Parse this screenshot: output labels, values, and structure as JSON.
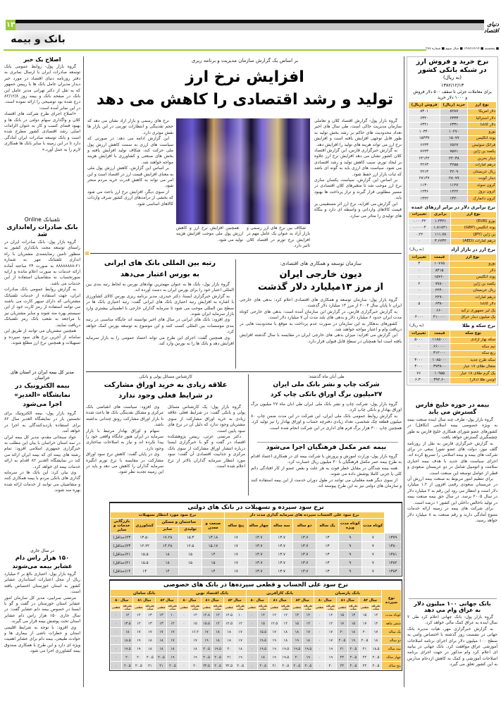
{
  "masthead": {
    "page_number": "۱۳",
    "logo": "دنیای اقتصاد",
    "section": "بانک و بیمه",
    "dateline": "■ پنجشنبه ■ ۱۳۸۲/۱۲/۱۴ ■ سال سوم ■ شماره ۳۸۷"
  },
  "colors": {
    "accent_green": "#9acd32",
    "table_yellow": "#f7c95a",
    "gray_bar": "#c8c8c8"
  },
  "left": {
    "a1": {
      "title": "اصلاح یک خبر",
      "body": [
        "گروه بازار پول- روابط عمومی بانک توسعه صادرات ایران با ارسال نمابری به دفتر روزنامه دنیای اقتصاد در مورد خبر دیدار مدیران عامل بانک ها با رییس جمهور که به نقل از دکتر تهرانی مدیر عامل این بانک در صفحه بانک و بیمه روز ۸۲/۱۲/۸ درج شده بود توضیحی را ارائه نموده است. در این نمابر آمده است:",
        "«اصلاح اجرای طرح شرکت های اقتصاد کلان و واگذاری سهام دولتی در بانک ها و بهبود فضای کسب و کار به عنوان الزامات اصلی رشد اقتصادی کشور مطرح شده است و بانک توسعه صادرات ایران آمادگی دارد تا در این زمینه با سایر بانک ها همکاری لازم را به عمل آورد.»"
      ]
    },
    "a2": {
      "kicker": "تلفنبانک Online",
      "title": "بانک صادرات راه‌اندازی شد",
      "body": [
        "گروه بازار پول- بانک صادرات ایران در راستای توسعه مجت بانکداری کشور به منظور تامین رضایتمندی مشتریان با راه اندازی تلفنبانک مهر به شماره ۲۱-۸۸۸۸۸۸۸۸ به صورت ۲۴ ساعته آماده ارائه خدمات به صورت اعلام مانده و ارایه صورتحساب به متقاضیان استفاده از این خدمات می باشد.",
        "به گزارش روابط عمومی بانک صادرات ایران، جهت استفاده از خدمات تلفنبانک مشتریانی که دارای سپهر کارت می باشند می توانند استفاده از رمز کارت خود از این سیستم بهره مند شوند و سایر مشتریان نیز با مراجعه به شعب بانک رمز تلفنبانک دریافت نمایند.",
        "همچنین مشتریان می توانند از طریق این سامانه از آخرین نرخ های سود سپرده و تسهیلات و همچنین نرخ ارز مطلع شوند."
      ]
    },
    "a3": {
      "kicker": "مدیر کل بیمه ایران در استان های خراسان",
      "title": "بیمه الکترونیک در نمایشگاه «الغدیر» اجرا می‌شود",
      "body": [
        "گروه بازار پول- بیمه الکترونیک برای نخستین بار در نمایشگاه الغدیر سال ۸۲ برای استفاده بازدیدکنندگان به اجرا در خواهد آمد.",
        "جواد سبحانی مقدم، مدیر کل بیمه ایران در سه استان خراسان با بیان این مطلب به خبرگزاری جمهوری اسلامی افزود: تمام رشته های بیمه ای که بیمه ایران ارائه می کند در نمایشگاه الغدیر ۸۲ اقدام به ارائه خدمات بیمه ای خواهد کرد.",
        "وی بیان کرد: این بانک ها در سرمایه گذاری های بانکی مردم با بیمه همکاری کنند و متقاضیان می توانند از خدمات ارائه شده بهره مند شوند."
      ]
    },
    "a4": {
      "kicker": "در سال جاری",
      "title": "۱۵۰ هزار راس دام عشایر بیمه می‌شوند",
      "body": [
        "گروه بازار پول- اعتباری بالغ بر ۲ میلیارد ریال از محل اعتبارات استانداری عشایر کشور به استان خوزستان اختصاص یافته است.",
        "مرتضی سرابیی، مدیر کل سازمان امور عشایر استان خوزستان در گفت و گو با ایسنا در خصوص بیمه دام عشایر گفت: در سال جاری ۱۵۰ هزار راس دام عشایر استان تحت پوشش بیمه قرار می گیرند.",
        "وی افزود: با توجه به شرایط اقلیمی استان و خطرات ناشی از بیماری ها و حوادث طبیعی، بیمه دام برای عشایر اهمیت ویژه ای دارد و این طرح با همکاری صندوق بیمه کشاورزی اجرا می شود."
      ]
    }
  },
  "main": {
    "lead": {
      "kicker": "بر اساس یک گزارش سازمان مدیریت و برنامه ریزی",
      "headline_1": "افزایش نرخ ارز",
      "headline_2": "تولید و رشد اقتصادی را کاهش می دهد",
      "body_right": [
        "گروه بازار پول- گزارش اقتصاد کلان و تعاملی سازمان مدیریت حاکی است، طی سال های اخیر تعداد محدودیت های حاکم بر رشد بخش تولید به طور قابل توجهی افزایش یافته است و افزایش نرخ ارز می تواند هزینه های تولید را افزایش دهد.",
        "به گزارش خبرگزاری فارس، این گزارش اقتصاد کلان کشور نشان می دهد افزایش نرخ ارز علاوه بر ایجاد تورم، سبب کاهش تولید و رشد اقتصادی می شود. سیاست های ارزی باید به گونه ای باشد که ثبات بازار ارز حفظ شود.",
        "بر اساس این گزارش، سیاست یکسان سازی نرخ ارز موجب شد تا متغیرهای کلان اقتصادی در مسیر مطلوبی قرار گیرند و تراز پرداخت ها بهبود یابد.",
        "این گزارش می افزاید، نرخ ارز اثر مستقیمی بر قیمت کالاهای وارداتی و واسطه ای دارد و بنگاه های تولیدی را متاثر می سازد."
      ],
      "body_left": [
        "نرخ های رسمی و بازار آزاد نشان می دهد که حجم نقدینگی و انتظارات تورمی در این بازار ها نقش موثری دارد.",
        "این گزارش ادامه می دهد: در صورتی که سیاست های ارزی به سمت کاهش ارزش پول ملی حرکت کند، شکاف تولید افزایش یافته و بخش های صنعتی و کشاورزی با افزایش هزینه مواجه خواهند شد.",
        "بر اساس این گزارش، کاهش ارزش پول ملی به معنای افزایش قیمت ارز در اقتصاد است و این امر می تواند به کاهش قدرت خرید مردم منجر شود.",
        "از سوی دیگر، افزایش نرخ ارز باعث می شود که بخشی از درآمدهای ارزی کشور صرف واردات کالاهای اساسی شود."
      ],
      "caption_1": "شکاف بین نرخ های ارز رسمی و بازار آزاد به عنوان یک عامل مهم در افزایش نرخ تورم در اقتصاد کلان تاثیر دارد.",
      "caption_2": "همچنین افزایش نرخ ارز و کاهش ارزش پول ملی موجب افزایش هزینه تولید می شود."
    },
    "rank": {
      "headline_1": "رتبه بین المللی بانک های ایرانی",
      "headline_2": "به بورس اعتبار می‌دهد",
      "body": [
        "گروه بازار پول- بانک ها به عنوان مهمترین نهادهای بورس به لحاظ رتبه بندی بین المللی اعتبار خود را برای بورس ایران به دست آورده اند.",
        "به گزارش خبرگزاری ایسنا، دکتر حیدری، مدیر برنامه ریزی بورس کالای کشاورزی با اشاره به افزایش رتبه اعتباری بانک های ایرانی گفت: رتبه اعتباری بانک ها در سطح بین المللی موجب می شود تا سرمایه گذاران خارجی با اطمینان بیشتری وارد بازار سرمایه ایران شوند.",
        "وی افزود: بانک های ایرانی در سال های اخیر توانسته اند جایگاه مناسبی در رتبه بندی موسسات بین المللی کسب کنند و این موضوع به توسعه بورس کمک خواهد کرد.",
        "وی همچنین گفت: اجرای این طرح می تواند اعتماد عمومی را به بازار سرمایه افزایش دهد و بانک ها را به بورس وارد کند."
      ]
    },
    "debt": {
      "kicker": "سازمان توسعه و همکاری های اقتصادی:",
      "headline_1": "دیون خارجی ایران",
      "headline_2": "از مرز ۱۳میلیارد دلار گذشت",
      "body": [
        "گروه بازار پول- سازمان توسعه و همکاری های اقتصادی اعلام کرد: بدهی های خارجی ایران تا پایان سال ۲۰۰۳ از مرز ۱۳ میلیارد دلار گذشت.",
        "به گزارش خبرگزاری فارس، در گزارش این سازمان آمده است: بدهی های خارجی کوتاه مدت ایران حدود ۶ میلیارد دلار و بدهی های بلند مدت آن ۷ میلیارد دلار است.",
        "کشورهای بدهکار به این سازمان در صورت عدم پرداخت به موقع با محدودیت هایی در دریافت وام و اعتبار مواجه خواهند شد.",
        "این گزارش می افزاید: میزان بدهی های خارجی ایران در مقایسه با سال گذشته افزایش یافته است اما همچنان در سطح قابل قبولی قرار دارد."
      ]
    },
    "bonds": {
      "kicker": "کارشناس مسائل پولی و بانکی",
      "headline_1": "علاقه زیادی به خرید اوراق مشارکت",
      "headline_2": "در شرایط فعلی وجود ندارد",
      "body": [
        "گروه بازار پول- یک کارشناس مسائل پولی و بانکی گفت: در شرایط فعلی علاقه زیادی به خرید اوراق مشارکت از سوی مشتریان وجود ندارد که دلیل آن در نرخ های سود پایین است.",
        "دکتر مرتضی عزتی، رییس پژوهشکده اقتصاد در گفت و گو با خبرگزاری ایسنا درباره انتشار اوراق مشارکت از سوی بانک مرکزی و جذابیت اقتصادی آن گفت: سود مورد انتظار سرمایه گذاران بالاتر از نرخ اعلام شده است.",
        "وی افزود: سیاست های انقباضی بانک مرکزی و مشکل نقدینگی بانک ها باعث شده تا بازار اوراق مشارکت رونق چندانی نداشته باشد.",
        "سهام و اوراق بهادار مرتبط با بازار سرمایه در ایران هنوز جایگاه واقعی خود را پیدا نکرده اند و نیاز به اصلاحات ساختاری وجود دارد.",
        "وی در پایان گفت: کاهش نرخ سود اوراق مشارکت در مقایسه با نرخ تورم انگیزه سرمایه گذاران را کاهش می دهد و باید در این زمینه تجدید نظر شود."
      ]
    },
    "print": {
      "kicker": "طی آبان ماه گذشته:",
      "headline_1": "شرکت چاپ و نشر بانک ملی ایران",
      "headline_2": "۲۷میلیون برگ اوراق بانکی چاپ کرد",
      "body": [
        "گروه بازار پول- شرکت چاپ و نشر بانک ملی ایران طی آبان ماه ۲۷ میلیون برگ اوراق بهادار و بانکی چاپ کرد.",
        "به گزارش روابط عمومی بانک ملی ایران، این شرکت در این مدت ضمن چاپ ۸۰ میلیون قطعه چک شخصی، تعداد زیادی دفترچه حساب و اوراق بهادار را نیز تولید کرد. همچنین چاپ ۳۰۰ هزار برگ فرم های اداری در این شرکت انجام شده است."
      ]
    },
    "insurance": {
      "headline": "بیمه عمر مکمل فرهنگیان اجرا می‌شود",
      "body": [
        "گروه بازار پول- وزارت آموزش و پرورش با شرکت بیمه ای در همکاری اعتماد اقدام به طرح بیمه عمر مکمل فرهنگیان با ۳۰ میلیون ریال خسارت کرد.",
        "همه بیمه شدگان در مقابل خطر فوت به هر علت و نقص عضو از کار افتادگی دائم کلی یا جزیی کاملا پوشش داده می شوند.",
        "از سوی دیگر همه معلمان می توانند در طول دوران خدمت از این بیمه استفاده کنند و سازمان های دولتی نیز به این طرح پیوسته اند."
      ]
    }
  },
  "table_state": {
    "title": "نرخ سود سپرده و تسهیلات در بانک های دولتی",
    "group_deposit": "نرخ سود علی الحساب سپرده های سرمایه گذاری مدت دار",
    "group_loan": "نرخ سود مورد انتظار تسهیلات",
    "deposit_cols": [
      "کوتاه مدت",
      "کوتاه مدت ویژه",
      "یک ساله",
      "دو ساله",
      "سه ساله",
      "چهار ساله",
      "پنج ساله"
    ],
    "loan_group_housing": "ساختمان و مسکن",
    "loan_cols": [
      "صنعت و معدن",
      "تولیدی",
      "سایر",
      "کشاورزی",
      "بازرگانی خدمات و سایر"
    ],
    "rows": [
      {
        "year": "۱۳۷۹",
        "values": [
          "۷",
          "۹",
          "۱۳",
          "۱۳.۷",
          "۱۳.۷",
          "۱۳.۷",
          "۱۷",
          "۱۳.۱۸",
          "۱۵.۳",
          "۱۷.۲۸",
          "۱۳.۵۰",
          "۲۳(حداقل)"
        ]
      },
      {
        "year": "۱۳۸۰",
        "values": [
          "۷",
          "۹",
          "۱۳",
          "۱۳.۷",
          "۱۳.۷",
          "۱۳.۷",
          "۱۷",
          "۱۵.۱۷",
          "۱۲.۵",
          "۱۴.۲۸",
          "۱۲.۲۲",
          "۲۳(حداقل)"
        ]
      },
      {
        "year": "۱۳۸۱",
        "values": [
          "۷",
          "۹",
          "۱۳",
          "۱۳.۷",
          "۱۳.۷",
          "۱۳.۷",
          "۱۷",
          "۱۴",
          "۱۵",
          "۱۸",
          "۱۵.۵",
          "۲۱(حداقل)"
        ]
      },
      {
        "year": "۱۳۸۲",
        "values": [
          "۷",
          "۹",
          "۱۳",
          "۱۳.۷",
          "۱۳.۷",
          "۱۳.۷",
          "۱۷",
          "۱۵",
          "۱۵",
          "۱۸",
          "۱۵.۵",
          "۲۱(حداقل)"
        ]
      },
      {
        "year": "۱۳۸۳",
        "values": [
          "۷",
          "۹",
          "۱۳",
          "۱۳.۷",
          "۱۳.۷",
          "۱۳.۷",
          "۱۷",
          "۱۴",
          "",
          "۱۴",
          "۱۴",
          "۱۴(حداقل)"
        ]
      }
    ]
  },
  "table_private": {
    "title": "نرخ سود علی الحساب و قطعی سپرده‌ها در بانک های خصوصی",
    "label_header": "نوع سپرده",
    "banks": [
      "بانک پارسیان",
      "بانک کارآفرین",
      "بانک اقتصاد نوین",
      "بانک سامان"
    ],
    "years": [
      "سال ۸۲",
      "سال ۸۱",
      "سال ۸۰"
    ],
    "sub": [
      "علی‌الحساب",
      "قطعی"
    ],
    "rows": [
      {
        "label": "کوتاه مدت",
        "values": [
          "۱۲",
          "۱۵",
          "۱۳",
          "۱۵",
          "۱۲",
          "۰",
          "۱۲",
          "۱۳",
          "۱۲",
          "۱۲",
          "۱۲",
          "۰",
          "۱۰",
          "۱۲.۵",
          "۱۲",
          "۱۲.۸",
          "۱۲",
          "۰",
          "۱۰",
          "۱۳",
          "۱۳",
          "۱۲",
          "۱۲",
          "۰"
        ]
      },
      {
        "label": "شش ماهه",
        "values": [
          "۱۲",
          "۱۷",
          "۱۵",
          "۱۷",
          "۱۲",
          "۰",
          "۱۲",
          "۱۵",
          "۱۲",
          "۱۲.۵",
          "۱۵",
          "۰",
          "۱۲",
          "۱۲.۵",
          "۱۲",
          "۱۵.۵",
          "۱۵",
          "۰",
          "۱۲",
          "۱۳",
          "۱۳",
          "۱۲",
          "۱۳.۵",
          "۰"
        ]
      },
      {
        "label": "یک ساله",
        "values": [
          "۱۷",
          "۲۰",
          "۱۸",
          "۲۰",
          "۱۷",
          "۰",
          "۱۷",
          "۱۸",
          "۱۸",
          "۱۷",
          "۱۵.۵",
          "۰",
          "۱۷",
          "۱۸",
          "۱۸",
          "۱۷",
          "۱۶.۲",
          "۰",
          "۱۷",
          "۱۷",
          "۱۷",
          "۱۷",
          "۱۸",
          "۰"
        ]
      },
      {
        "label": "دو ساله",
        "values": [
          "۱۸",
          "۲۰.۵",
          "۱۹",
          "۲۰.۵",
          "۱۷",
          "۰",
          "۱۸",
          "۱۹",
          "۱۸",
          "۱۹",
          "۱۹.۵",
          "۰",
          "۱۷",
          "۱۸",
          "۱۸",
          "۱۹",
          "۱۷",
          "۰",
          "۱۷",
          "۱۸",
          "۱۸",
          "۱۹",
          "۱۸.۵",
          "۰"
        ]
      },
      {
        "label": "سه ساله",
        "values": [
          "۱۸.۵",
          "۲۱",
          "۲۰.۵",
          "۲۱",
          "۱۹",
          "۰",
          "۱۹.۵",
          "۱۹.۵",
          "۱۹.۵",
          "۱۹",
          "۱۹.۵",
          "۰",
          "۱۸",
          "۲۰",
          "۱۹.۵",
          "۲۰.۵",
          "۱۸",
          "۰",
          "۱۸",
          "۱۸",
          "۱۸",
          "۱۹",
          "۱۹.۵",
          "۰"
        ]
      },
      {
        "label": "چهار ساله",
        "values": [
          "۲۰.۵",
          "۲۲",
          "۲۰.۵",
          "۲۲",
          "۱۹",
          "۰",
          "۱۹",
          "۲۰",
          "۱۹.۵",
          "۱۹",
          "۱۸",
          "۰",
          "۱۹",
          "۲۱",
          "۲۰.۵",
          "۲۰.۵",
          "۱۹",
          "۰",
          "۱۹",
          "۲۰.۵",
          "۲۰.۵",
          "۲۰",
          "۲۰",
          "۰"
        ]
      },
      {
        "label": "پنج ساله",
        "values": [
          "۲۰.۵",
          "۲۲",
          "۲۰.۵",
          "۲۲",
          "۲۰",
          "۰",
          "۲۰.۵",
          "۲۰.۵",
          "۲۰.۵",
          "۲۱",
          "۲۰.۵",
          "۰",
          "۲۰.۵",
          "۲۲.۵",
          "۲۰.۵",
          "۲۲.۵",
          "۲۰",
          "۰",
          "۲۰.۵",
          "۲۱",
          "۲۱",
          "۲۰.۵",
          "۲۰.۵",
          "۰"
        ]
      }
    ]
  },
  "sidebar": {
    "fx": {
      "title_1": "نرخ خرید و فروش ارز",
      "title_2": "در شبکه بانکی کشور",
      "unit": "(به ریال)",
      "date": "۱۳۸۲/۱۲/۱۳",
      "note": "برای معاملات جزئی تا سقف ۵۰۰ دلار فروش و ۱۰۰۰ دلار خرید",
      "headers": [
        "نوع ارز",
        "خرید (ریال)",
        "فروش (ریال)"
      ],
      "rows": [
        [
          "دلار آمریکا",
          "۸۲۸۷",
          "۸۳۰۱"
        ],
        [
          "دلار استرالیا",
          "۶۳۳۳",
          "۶۳۴۰"
        ],
        [
          "دلار کانادا",
          "۶۳۳۱",
          "۶۳۴۱"
        ],
        [
          "یورو",
          "۱۰۲۷۰",
          "۱۰۳۴۰"
        ],
        [
          "پوند انگلیس",
          "۱۵۰۷۷",
          "۱۵۴۳۷"
        ],
        [
          "فرانک سوئیس",
          "۶۵۶۷",
          "۶۶۴۳"
        ],
        [
          "یکصد ین ژاپن",
          "۷۵۷۱",
          "۷۶۴۳"
        ],
        [
          "دینار بحرین",
          "۲۲۰۳۸",
          "۲۲۱۴۲"
        ],
        [
          "درهم امارات",
          "۲۲۵۵",
          "۲۲۶۳"
        ],
        [
          "ریال عربستان",
          "۲۲۰۹",
          "۲۲۱۳"
        ],
        [
          "دینار کویت",
          "۲۸۰۷۷",
          "۲۸۱۴۷"
        ],
        [
          "کرون سوئد",
          "۱۱۲۷",
          "۱۱۳۰"
        ],
        [
          "کرون نروژ",
          "۱۲۲۲",
          "۱۲۳۶"
        ],
        [
          "کرون دانمارک",
          "۱۳۲۰",
          "۱۳۴۲"
        ]
      ]
    },
    "parity": {
      "title": "نرخ برابری دلار در برابر ارزهای عمده",
      "headers": [
        "نوع ارز",
        "برابری",
        "تغییرات"
      ],
      "rows": [
        [
          "یورو (EUR)",
          "۱.۲۳۲۱",
          "۰.۰۰۰۴۲"
        ],
        [
          "پوند انگلیس (GBP)",
          "۱.۸۱۸۴۱",
          "۰.۰۰۰۰۴"
        ],
        [
          "ین ژاپن (JPY)",
          "۱۱۱.۷۸",
          "۰.۲۲"
        ],
        [
          "درهم امارات (AED)",
          "۳.۶۷۳۲",
          "۰"
        ]
      ]
    },
    "free": {
      "title": "نرخ ارز در بازار آزاد",
      "unit": "(به ریال)",
      "headers": [
        "نوع ارز",
        "قیمت",
        "تغییرات"
      ],
      "rows": [
        [
          "یورو",
          "۱۰۷۶۵",
          "۳"
        ],
        [
          "دلار",
          "۸۴۱۵",
          "۰"
        ],
        [
          "پوند انگلیس",
          "۱۵۷۶۰",
          "۰"
        ],
        [
          "یکصد ین ژاپن",
          "۷۷۸۰",
          "۲"
        ],
        [
          "ریال عربستان",
          "۲۲۴۰",
          "۰"
        ],
        [
          "درهم امارات",
          "۲۲۹۰",
          "۰"
        ],
        [
          "دلار کانادا",
          "۶۳۸۰",
          "۵"
        ],
        [
          "یک لیر جمهوری ترکیه",
          "۶۶۰",
          "۰"
        ],
        [
          "یک میلیون دینار عراق",
          "۴۱۰۰۰۰",
          "۴۰۰۰"
        ]
      ]
    },
    "gold": {
      "title": "نرخ سکه و طلا",
      "unit": "(به ریال)",
      "headers": [
        "نوع سکه",
        "قیمت",
        "تغییرات"
      ],
      "rows": [
        [
          "سکه بهار آزادی",
          "۱۱۸۵۰۰۰",
          "۵۰۰۰"
        ],
        [
          "نیم سکه",
          "۶۶۰۰۰۰",
          "۰"
        ],
        [
          "ربع سکه",
          "۳۱۲۰۰۰",
          "۰"
        ],
        [
          "سکه طرح جدید",
          "۱۰۸۵۰۰۰",
          "۳۰۰۰"
        ],
        [
          "مثقال طلای ۱۷ عیار",
          "۳۷۳۸۰۰",
          "۳۰۰۰"
        ],
        [
          "یک گرم طلای ۱۸ عیار",
          "۱۰۹۵۵",
          "۷۶"
        ],
        [
          "اونس طلا (دلار)",
          "۳۹۲.۶۰",
          "۶.۳۰"
        ]
      ]
    },
    "gulf": {
      "headline_1": "بیمه در حوزه خلیج فارس",
      "headline_2": "گسترش می یابد",
      "body": [
        "گروه بازار پول- ظرف چند سال آینده صنعت بیمه به ویژه خصوصی بیمه اسلامی (تکافل) در کشورهای عضو شورای همکاری خلیج فارس به طور چشمگیری گسترش خواهد یافت.",
        "به گزارش خبرگزاری فارس به نقل از روزنامه گلف نیوز، دولت های عضو شورا سعی در برای شرکت های بیمه و بیمه اسلامی را تسریع کرده اند. اجرای سیاست های جدید با هدف بیمه اجباری سلامت و اتومبیل شامل در دو عربستان سعودی و قطر از عوامل توسعه این صنعت است.",
        "برای تنظیم امور مربوط به صنعت بیمه ارزش آن در عربستان سعودی رقمی افزون از ۱.۲ میلیارد دلار است و انتظار می رود این رقم به ۲ میلیارد دلار در سال ۲۰۰۵ برسد. در سال حق بیمه صنعت بیمه در تولید ناخالص داخلی این کشور ۱ درصد است.",
        "برای شرکت های بیمه در زمینه ارائه خدمات متنوع آمادگی دارند و رقم صنعت به ۸ میلیارد دلار خواهد رسید."
      ]
    },
    "wb": {
      "headline_1": "بانک جهانی ۱۰۰ میلیون دلار",
      "headline_2": "به عراق وام می دهد",
      "body": [
        "گروه بازار پول- بانک جهانی اعلام کرد طی ۲ سال آینده به عراق کمک مالی خواهد کرد.",
        "به گزارش خبرگزاری مهر، هیات مدیره بانک جهانی در نشست روز گذشته با اختصاص وامی به سطح ۱۰۰ میلیون دلار برای اجرای برنامه اصلاحات آموزشی عراق موافقت کرد. بانک جهانی در بیانیه ای اعلام کرد وام مذکور در جهت اجرای برنامه اصلاحات آموزشی و کمک به کاهش ازدحام مدارس به این کشور تعلق می گیرد."
      ]
    }
  }
}
